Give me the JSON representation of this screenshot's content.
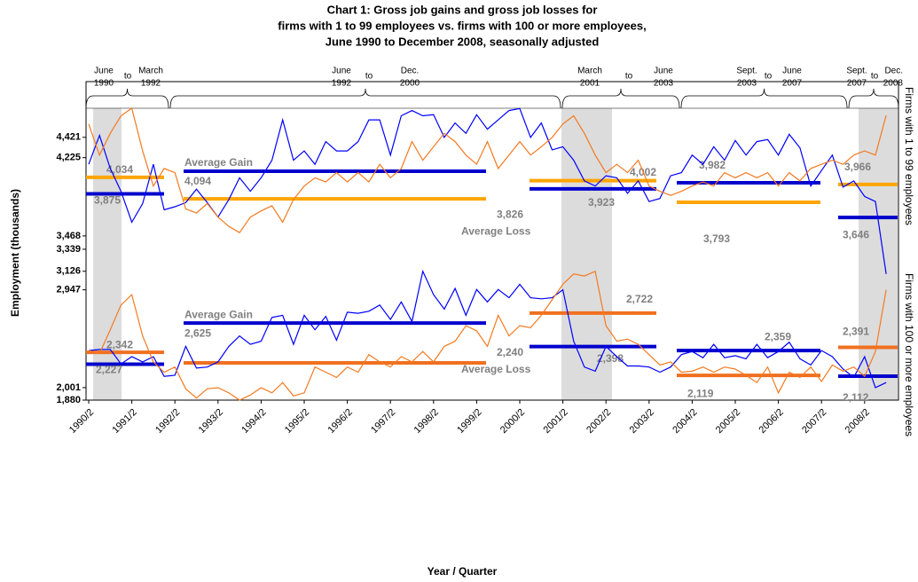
{
  "chart_data": {
    "type": "line",
    "title": [
      "Chart 1: Gross job gains and gross job losses for",
      "firms with 1 to 99 employees vs. firms with 100 or more employees,",
      "June 1990 to December 2008, seasonally adjusted"
    ],
    "y_label": "Employment (thousands)",
    "x_label": "Year / Quarter",
    "panel_labels": [
      "Firms with 1 to 99 employees",
      "Firms with 100 or more employees"
    ],
    "categories": [
      "1990/2",
      null,
      null,
      null,
      "1991/2",
      null,
      null,
      null,
      "1992/2",
      null,
      null,
      null,
      "1993/2",
      null,
      null,
      null,
      "1994/2",
      null,
      null,
      null,
      "1995/2",
      null,
      null,
      null,
      "1996/2",
      null,
      null,
      null,
      "1997/2",
      null,
      null,
      null,
      "1998/2",
      null,
      null,
      null,
      "1999/2",
      null,
      null,
      null,
      "2000/2",
      null,
      null,
      null,
      "2001/2",
      null,
      null,
      null,
      "2002/2",
      null,
      null,
      null,
      "2003/2",
      null,
      null,
      null,
      "2004/2",
      null,
      null,
      null,
      "2005/2",
      null,
      null,
      null,
      "2006/2",
      null,
      null,
      null,
      "2007/2",
      null,
      null,
      null,
      "2008/2",
      null,
      null
    ],
    "ylim": [
      1880,
      4960
    ],
    "yticks": [
      {
        "value": 4421,
        "label": "4,421"
      },
      {
        "value": 4225,
        "label": "4,225"
      },
      {
        "value": 3468,
        "label": "3,468"
      },
      {
        "value": 3339,
        "label": "3,339"
      },
      {
        "value": 3126,
        "label": "3,126"
      },
      {
        "value": 2947,
        "label": "2,947"
      },
      {
        "value": 2001,
        "label": "2,001"
      },
      {
        "value": 1880,
        "label": "1,880"
      }
    ],
    "series": [
      {
        "color": "#0000ff",
        "values": [
          4160,
          4440,
          4120,
          3900,
          3600,
          3780,
          4160,
          3720,
          3750,
          3790,
          3920,
          3790,
          3650,
          3820,
          4030,
          3900,
          4030,
          4200,
          4590,
          4200,
          4290,
          4160,
          4380,
          4290,
          4290,
          4380,
          4590,
          4590,
          4250,
          4630,
          4680,
          4630,
          4640,
          4420,
          4560,
          4460,
          4640,
          4500,
          4590,
          4680,
          4700,
          4420,
          4560,
          4300,
          4330,
          4200,
          4000,
          3950,
          4050,
          4030,
          3880,
          4000,
          3800,
          3830,
          4050,
          4080,
          4250,
          4160,
          4330,
          4200,
          4390,
          4250,
          4380,
          4400,
          4250,
          4450,
          4320,
          3950,
          4100,
          4250,
          3940,
          4000,
          3850,
          3800,
          3100
        ]
      },
      {
        "color": "#f47a20",
        "values": [
          4550,
          4250,
          4460,
          4630,
          4703,
          4290,
          3950,
          4120,
          4080,
          3730,
          3690,
          3780,
          3650,
          3560,
          3500,
          3650,
          3710,
          3760,
          3600,
          3820,
          3950,
          4030,
          3990,
          4080,
          3990,
          4080,
          3990,
          4160,
          4030,
          4120,
          4380,
          4200,
          4330,
          4460,
          4380,
          4250,
          4160,
          4380,
          4120,
          4250,
          4380,
          4250,
          4330,
          4420,
          4550,
          4630,
          4460,
          4250,
          4080,
          4160,
          4080,
          4200,
          3950,
          3900,
          3860,
          3900,
          3950,
          3990,
          3950,
          4080,
          4030,
          4080,
          4030,
          4080,
          3950,
          4080,
          4000,
          4120,
          4160,
          4200,
          4160,
          4250,
          4290,
          4250,
          4634
        ]
      },
      {
        "color": "#0000ff",
        "values": [
          2360,
          2370,
          2370,
          2230,
          2300,
          2250,
          2300,
          2110,
          2120,
          2400,
          2190,
          2200,
          2250,
          2400,
          2500,
          2420,
          2450,
          2680,
          2700,
          2420,
          2700,
          2560,
          2690,
          2460,
          2730,
          2720,
          2740,
          2800,
          2660,
          2830,
          2640,
          3126,
          2900,
          2760,
          2960,
          2700,
          2950,
          2830,
          2950,
          2870,
          3000,
          2870,
          2860,
          2870,
          2947,
          2450,
          2200,
          2160,
          2400,
          2300,
          2210,
          2210,
          2200,
          2150,
          2200,
          2320,
          2350,
          2290,
          2420,
          2290,
          2310,
          2280,
          2420,
          2290,
          2350,
          2440,
          2280,
          2220,
          2360,
          2300,
          2180,
          2100,
          2300,
          2001,
          2050
        ]
      },
      {
        "color": "#f47a20",
        "values": [
          2360,
          2330,
          2560,
          2800,
          2900,
          2500,
          2250,
          2150,
          2200,
          1990,
          1900,
          1990,
          2000,
          1950,
          1880,
          1930,
          2000,
          1950,
          2050,
          1920,
          1950,
          2200,
          2150,
          2100,
          2200,
          2150,
          2320,
          2250,
          2200,
          2300,
          2250,
          2350,
          2250,
          2400,
          2450,
          2600,
          2550,
          2400,
          2700,
          2500,
          2600,
          2580,
          2700,
          2850,
          3000,
          3100,
          3080,
          3126,
          2600,
          2450,
          2470,
          2420,
          2320,
          2220,
          2250,
          2150,
          2160,
          2200,
          2150,
          2200,
          2180,
          2120,
          2050,
          2200,
          1950,
          2150,
          2100,
          2200,
          2060,
          2220,
          2160,
          2200,
          2110,
          2350,
          2947
        ]
      }
    ],
    "periods": [
      {
        "start": [
          "June",
          "1990"
        ],
        "to": "to",
        "end": [
          "March",
          "1992"
        ],
        "averages": [
          {
            "value": 3875,
            "value_label": "3,875",
            "color": "#0000cc"
          },
          {
            "value": 4034,
            "value_label": "4,034",
            "color": "#ffa500"
          },
          {
            "value": 2227,
            "value_label": "2,227",
            "color": "#0000cc"
          },
          {
            "value": 2342,
            "value_label": "2,342",
            "color": "#f07020"
          }
        ]
      },
      {
        "start": [
          "June",
          "1992"
        ],
        "to": "to",
        "end": [
          "Dec.",
          "2000"
        ],
        "averages": [
          {
            "value": 4094,
            "value_label": "4,094",
            "color": "#0000cc",
            "text": "Average Gain"
          },
          {
            "value": 3826,
            "value_label": "3,826",
            "color": "#ffa500",
            "text": "Average Loss"
          },
          {
            "value": 2625,
            "value_label": "2,625",
            "color": "#0000cc",
            "text": "Average Gain"
          },
          {
            "value": 2240,
            "value_label": "2,240",
            "color": "#f07020",
            "text": "Average Loss"
          }
        ]
      },
      {
        "start": [
          "March",
          "2001"
        ],
        "to": "to",
        "end": [
          "June",
          "2003"
        ],
        "averages": [
          {
            "value": 3923,
            "value_label": "3,923",
            "color": "#0000cc"
          },
          {
            "value": 4002,
            "value_label": "4,002",
            "color": "#ffa500"
          },
          {
            "value": 2398,
            "value_label": "2,398",
            "color": "#0000cc"
          },
          {
            "value": 2722,
            "value_label": "2,722",
            "color": "#f07020"
          }
        ]
      },
      {
        "start": [
          "Sept.",
          "2003"
        ],
        "to": "to",
        "end": [
          "June",
          "2007"
        ],
        "averages": [
          {
            "value": 3982,
            "value_label": "3,982",
            "color": "#0000cc"
          },
          {
            "value": 3793,
            "value_label": "3,793",
            "color": "#ffa500"
          },
          {
            "value": 2359,
            "value_label": "2,359",
            "color": "#0000cc"
          },
          {
            "value": 2119,
            "value_label": "2,119",
            "color": "#f07020"
          }
        ]
      },
      {
        "start": [
          "Sept.",
          "2007"
        ],
        "to": "to",
        "end": [
          "Dec.",
          "2008"
        ],
        "averages": [
          {
            "value": 3646,
            "value_label": "3,646",
            "color": "#0000cc"
          },
          {
            "value": 3966,
            "value_label": "3,966",
            "color": "#ffa500"
          },
          {
            "value": 2112,
            "value_label": "2,112",
            "color": "#0000cc"
          },
          {
            "value": 2391,
            "value_label": "2,391",
            "color": "#f07020"
          }
        ]
      }
    ]
  }
}
